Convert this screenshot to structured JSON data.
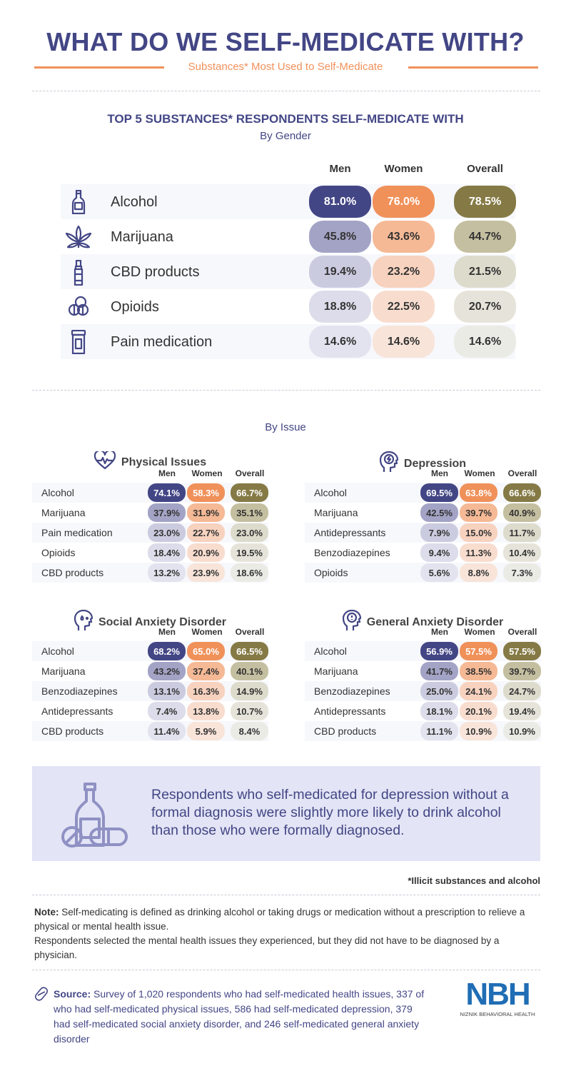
{
  "header": {
    "title": "WHAT DO WE SELF-MEDICATE WITH?",
    "subtitle": "Substances* Most Used to Self-Medicate"
  },
  "colors": {
    "men": [
      "#434685",
      "#a3a3c6",
      "#cbcbe0",
      "#dcdcea",
      "#e3e3ef"
    ],
    "women": [
      "#f0915a",
      "#f5b995",
      "#f7d2bf",
      "#f8ddcf",
      "#f8e4d9"
    ],
    "overall": [
      "#857a45",
      "#c4bfa0",
      "#dddbcc",
      "#e6e4da",
      "#ebebe6"
    ],
    "accent": "#434685",
    "orange": "#f0915a"
  },
  "chart_data": [
    {
      "type": "table",
      "title": "TOP 5 SUBSTANCES* RESPONDENTS SELF-MEDICATE WITH",
      "subtitle": "By Gender",
      "columns": [
        "Men",
        "Women",
        "Overall"
      ],
      "rows": [
        {
          "label": "Alcohol",
          "icon": "bottle-icon",
          "values": [
            "81.0%",
            "76.0%",
            "78.5%"
          ]
        },
        {
          "label": "Marijuana",
          "icon": "cannabis-leaf-icon",
          "values": [
            "45.8%",
            "43.6%",
            "44.7%"
          ]
        },
        {
          "label": "CBD products",
          "icon": "vial-icon",
          "values": [
            "19.4%",
            "23.2%",
            "21.5%"
          ]
        },
        {
          "label": "Opioids",
          "icon": "pills-icon",
          "values": [
            "18.8%",
            "22.5%",
            "20.7%"
          ]
        },
        {
          "label": "Pain medication",
          "icon": "pill-bottle-icon",
          "values": [
            "14.6%",
            "14.6%",
            "14.6%"
          ]
        }
      ]
    },
    {
      "type": "table",
      "section": "By Issue",
      "title": "Physical Issues",
      "icon": "heart-pulse-icon",
      "columns": [
        "Men",
        "Women",
        "Overall"
      ],
      "rows": [
        {
          "label": "Alcohol",
          "values": [
            "74.1%",
            "58.3%",
            "66.7%"
          ]
        },
        {
          "label": "Marijuana",
          "values": [
            "37.9%",
            "31.9%",
            "35.1%"
          ]
        },
        {
          "label": "Pain medication",
          "values": [
            "23.0%",
            "22.7%",
            "23.0%"
          ]
        },
        {
          "label": "Opioids",
          "values": [
            "18.4%",
            "20.9%",
            "19.5%"
          ]
        },
        {
          "label": "CBD products",
          "values": [
            "13.2%",
            "23.9%",
            "18.6%"
          ]
        }
      ]
    },
    {
      "type": "table",
      "title": "Depression",
      "icon": "head-storm-icon",
      "columns": [
        "Men",
        "Women",
        "Overall"
      ],
      "rows": [
        {
          "label": "Alcohol",
          "values": [
            "69.5%",
            "63.8%",
            "66.6%"
          ]
        },
        {
          "label": "Marijuana",
          "values": [
            "42.5%",
            "39.7%",
            "40.9%"
          ]
        },
        {
          "label": "Antidepressants",
          "values": [
            "7.9%",
            "15.0%",
            "11.7%"
          ]
        },
        {
          "label": "Benzodiazepines",
          "values": [
            "9.4%",
            "11.3%",
            "10.4%"
          ]
        },
        {
          "label": "Opioids",
          "values": [
            "5.6%",
            "8.8%",
            "7.3%"
          ]
        }
      ]
    },
    {
      "type": "table",
      "title": "Social Anxiety Disorder",
      "icon": "head-sweat-icon",
      "columns": [
        "Men",
        "Women",
        "Overall"
      ],
      "rows": [
        {
          "label": "Alcohol",
          "values": [
            "68.2%",
            "65.0%",
            "66.5%"
          ]
        },
        {
          "label": "Marijuana",
          "values": [
            "43.2%",
            "37.4%",
            "40.1%"
          ]
        },
        {
          "label": "Benzodiazepines",
          "values": [
            "13.1%",
            "16.3%",
            "14.9%"
          ]
        },
        {
          "label": "Antidepressants",
          "values": [
            "7.4%",
            "13.8%",
            "10.7%"
          ]
        },
        {
          "label": "CBD products",
          "values": [
            "11.4%",
            "5.9%",
            "8.4%"
          ]
        }
      ]
    },
    {
      "type": "table",
      "title": "General Anxiety Disorder",
      "icon": "head-alert-icon",
      "columns": [
        "Men",
        "Women",
        "Overall"
      ],
      "rows": [
        {
          "label": "Alcohol",
          "values": [
            "56.9%",
            "57.5%",
            "57.5%"
          ]
        },
        {
          "label": "Marijuana",
          "values": [
            "41.7%",
            "38.5%",
            "39.7%"
          ]
        },
        {
          "label": "Benzodiazepines",
          "values": [
            "25.0%",
            "24.1%",
            "24.7%"
          ]
        },
        {
          "label": "Antidepressants",
          "values": [
            "18.1%",
            "20.1%",
            "19.4%"
          ]
        },
        {
          "label": "CBD products",
          "values": [
            "11.1%",
            "10.9%",
            "10.9%"
          ]
        }
      ]
    }
  ],
  "callout": {
    "icon": "bottle-and-pills-icon",
    "text": "Respondents who self-medicated for depression without a formal diagnosis were slightly more likely to drink alcohol than those who were formally diagnosed."
  },
  "footnote": "*Illicit substances and alcohol",
  "note": {
    "label": "Note:",
    "line1": " Self-medicating is defined as drinking alcohol or taking drugs or medication without a prescription to relieve a physical or mental health issue.",
    "line2": "Respondents selected the mental health issues they experienced, but they did not have to be diagnosed by a physician."
  },
  "source": {
    "label": "Source:",
    "text": " Survey of 1,020 respondents who had self-medicated health issues, 337 of who had self-medicated physical issues, 586 had self-medicated depression, 379 had self-medicated social anxiety disorder, and 246 self-medicated general anxiety disorder"
  },
  "logo": {
    "text": "NBH",
    "tagline": "NIZNIK BEHAVIORAL HEALTH",
    "color": "#1f6db5"
  }
}
